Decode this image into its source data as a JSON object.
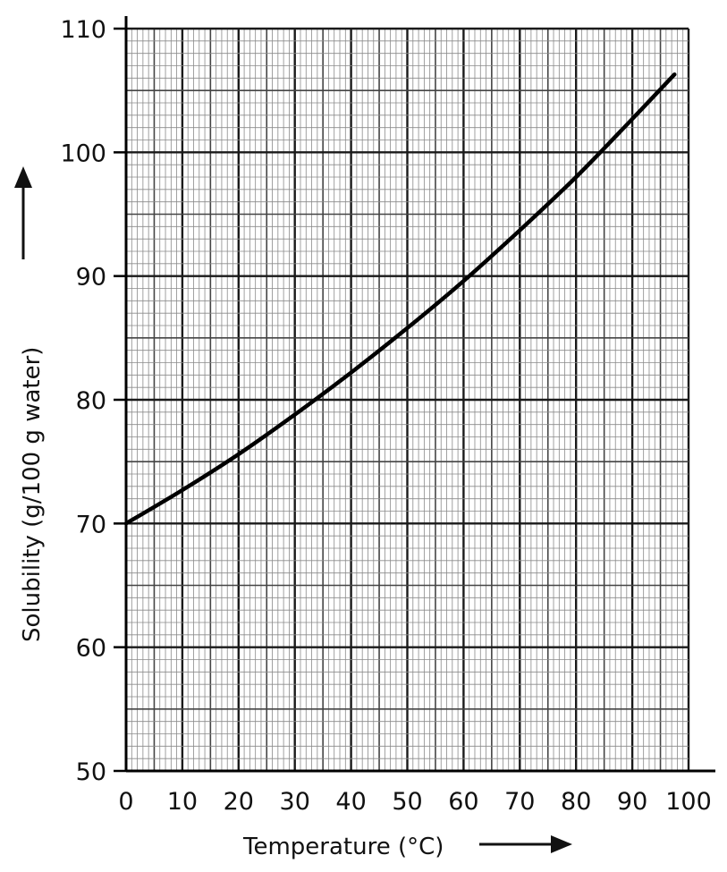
{
  "chart_data": {
    "type": "line",
    "xlabel": "Temperature (°C)",
    "ylabel": "Solubility (g/100 g water)",
    "xlim": [
      0,
      100
    ],
    "ylim": [
      50,
      110
    ],
    "x_ticks": [
      "0",
      "10",
      "20",
      "30",
      "40",
      "50",
      "60",
      "70",
      "80",
      "90",
      "100"
    ],
    "y_ticks": [
      "50",
      "60",
      "70",
      "80",
      "90",
      "100",
      "110"
    ],
    "grid": true,
    "series": [
      {
        "x": [
          0,
          10,
          20,
          30,
          40,
          50,
          60,
          70,
          80,
          90,
          97.5
        ],
        "y": [
          70,
          72.7,
          75.6,
          78.8,
          82.2,
          85.8,
          89.6,
          93.7,
          98.0,
          102.7,
          106.3
        ]
      }
    ]
  }
}
